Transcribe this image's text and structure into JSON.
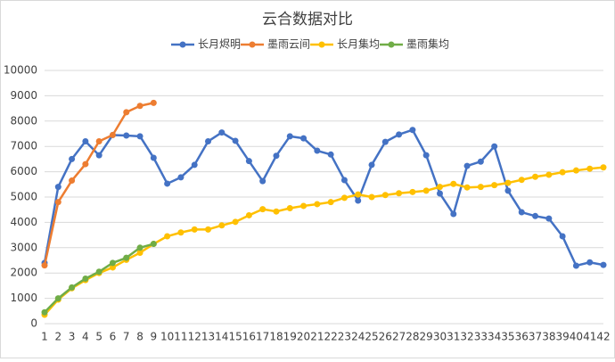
{
  "chart_data": {
    "type": "line",
    "title": "云合数据对比",
    "categories": [
      1,
      2,
      3,
      4,
      5,
      6,
      7,
      8,
      9,
      10,
      11,
      12,
      13,
      14,
      15,
      16,
      17,
      18,
      19,
      20,
      21,
      22,
      23,
      24,
      25,
      26,
      27,
      28,
      29,
      30,
      31,
      32,
      33,
      34,
      35,
      36,
      37,
      38,
      39,
      40,
      41,
      42
    ],
    "series": [
      {
        "name": "长月烬明",
        "color": "#4472c4",
        "values": [
          2400,
          5400,
          6500,
          7200,
          6650,
          7450,
          7430,
          7400,
          6550,
          5530,
          5780,
          6270,
          7200,
          7550,
          7220,
          6420,
          5630,
          6630,
          7400,
          7320,
          6830,
          6680,
          5670,
          4860,
          6270,
          7180,
          7470,
          7650,
          6650,
          5140,
          4330,
          6230,
          6400,
          7000,
          5250,
          4400,
          4250,
          4150,
          3450,
          2290,
          2420,
          2320
        ]
      },
      {
        "name": "墨雨云间",
        "color": "#ed7d31",
        "values": [
          2300,
          4800,
          5650,
          6300,
          7200,
          7450,
          8350,
          8600,
          8720,
          null,
          null,
          null,
          null,
          null,
          null,
          null,
          null,
          null,
          null,
          null,
          null,
          null,
          null,
          null,
          null,
          null,
          null,
          null,
          null,
          null,
          null,
          null,
          null,
          null,
          null,
          null,
          null,
          null,
          null,
          null,
          null,
          null
        ]
      },
      {
        "name": "长月集均",
        "color": "#ffc000",
        "values": [
          350,
          950,
          1400,
          1720,
          2000,
          2220,
          2520,
          2800,
          3150,
          3450,
          3600,
          3720,
          3720,
          3880,
          4020,
          4280,
          4520,
          4430,
          4560,
          4650,
          4720,
          4800,
          4970,
          5100,
          5000,
          5080,
          5150,
          5200,
          5250,
          5400,
          5520,
          5380,
          5400,
          5470,
          5560,
          5680,
          5800,
          5880,
          5980,
          6050,
          6120,
          6170
        ]
      },
      {
        "name": "墨雨集均",
        "color": "#70ad47",
        "values": [
          450,
          1000,
          1430,
          1780,
          2050,
          2400,
          2600,
          3000,
          3150,
          null,
          null,
          null,
          null,
          null,
          null,
          null,
          null,
          null,
          null,
          null,
          null,
          null,
          null,
          null,
          null,
          null,
          null,
          null,
          null,
          null,
          null,
          null,
          null,
          null,
          null,
          null,
          null,
          null,
          null,
          null,
          null,
          null
        ]
      }
    ],
    "ylim": [
      0,
      10000
    ],
    "yticks": [
      0,
      1000,
      2000,
      3000,
      4000,
      5000,
      6000,
      7000,
      8000,
      9000,
      10000
    ],
    "grid": true,
    "legend": "top"
  }
}
